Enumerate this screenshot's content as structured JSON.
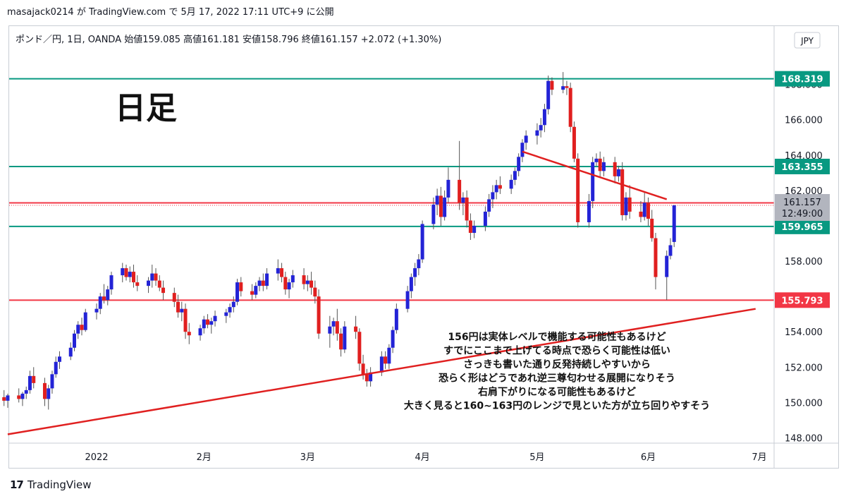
{
  "header": {
    "text": "masajack0214 が TradingView.com で 5月 17, 2022 17:11 UTC+9 に公開"
  },
  "footer": {
    "logo_glyph": "17",
    "brand": "TradingView"
  },
  "chart_data": {
    "type": "candlestick",
    "legend": "ポンド／円, 1日, OANDA  始値159.085  高値161.181  安値158.796  終値161.157  +2.072 (+1.30%)",
    "big_label": "日足",
    "currency": "JPY",
    "ylim": [
      147.7,
      171.3
    ],
    "y_ticks": [
      "148.000",
      "150.000",
      "152.000",
      "154.000",
      "156.000",
      "158.000",
      "160.000",
      "162.000",
      "164.000",
      "166.000",
      "168.000"
    ],
    "x_labels": [
      {
        "label": "2022",
        "date": "2022-01-03"
      },
      {
        "label": "2月",
        "date": "2022-02-01"
      },
      {
        "label": "3月",
        "date": "2022-03-01"
      },
      {
        "label": "4月",
        "date": "2022-04-01"
      },
      {
        "label": "5月",
        "date": "2022-05-02"
      },
      {
        "label": "6月",
        "date": "2022-06-01"
      },
      {
        "label": "7月",
        "date": "2022-07-01"
      }
    ],
    "horizontal_levels": [
      {
        "value": 168.319,
        "label": "168.319",
        "color": "#089981"
      },
      {
        "value": 163.355,
        "label": "163.355",
        "color": "#089981"
      },
      {
        "value": 161.295,
        "label": "161.295",
        "color": "#f23645"
      },
      {
        "value": 159.965,
        "label": "159.965",
        "color": "#089981"
      },
      {
        "value": 155.793,
        "label": "155.793",
        "color": "#f23645"
      }
    ],
    "price_marker": {
      "value": 161.157,
      "price": "161.157",
      "countdown": "12:49:00"
    },
    "trend_lines": [
      {
        "from": {
          "date": "2021-12-10",
          "price": 148.2
        },
        "to": {
          "date": "2022-06-30",
          "price": 155.3
        },
        "color": "#e02020"
      },
      {
        "from": {
          "date": "2022-04-28",
          "price": 164.2
        },
        "to": {
          "date": "2022-06-06",
          "price": 161.5
        },
        "color": "#e02020"
      }
    ],
    "up_color": "#2323d6",
    "down_color": "#e01f1f",
    "annotation_lines": [
      "156円は実体レベルで機能する可能性もあるけど",
      "すでにここまで上げてる時点で恐らく可能性は低い",
      "さっきも書いた通り反発持続しやすいから",
      "恐らく形はどうであれ逆三尊匂わせる展開になりそう",
      "右肩下がりになる可能性もあるけど",
      "大きく見ると160~163円のレンジで見といた方が立ち回りやすそう"
    ],
    "candles": [
      {
        "date": "2021-12-09",
        "o": 150.3,
        "h": 150.7,
        "l": 149.8,
        "c": 150.1
      },
      {
        "date": "2021-12-10",
        "o": 150.1,
        "h": 150.5,
        "l": 149.7,
        "c": 150.4
      },
      {
        "date": "2021-12-13",
        "o": 150.4,
        "h": 150.8,
        "l": 150.0,
        "c": 150.2
      },
      {
        "date": "2021-12-14",
        "o": 150.2,
        "h": 150.6,
        "l": 149.8,
        "c": 150.5
      },
      {
        "date": "2021-12-15",
        "o": 150.5,
        "h": 150.9,
        "l": 150.2,
        "c": 150.7
      },
      {
        "date": "2021-12-16",
        "o": 150.7,
        "h": 151.8,
        "l": 150.5,
        "c": 151.5
      },
      {
        "date": "2021-12-17",
        "o": 151.5,
        "h": 152.0,
        "l": 150.8,
        "c": 151.1
      },
      {
        "date": "2021-12-20",
        "o": 151.1,
        "h": 151.4,
        "l": 149.8,
        "c": 150.2
      },
      {
        "date": "2021-12-21",
        "o": 150.2,
        "h": 151.0,
        "l": 149.6,
        "c": 150.8
      },
      {
        "date": "2021-12-22",
        "o": 150.8,
        "h": 151.8,
        "l": 150.5,
        "c": 151.6
      },
      {
        "date": "2021-12-23",
        "o": 151.6,
        "h": 152.6,
        "l": 151.4,
        "c": 152.3
      },
      {
        "date": "2021-12-24",
        "o": 152.3,
        "h": 152.9,
        "l": 151.9,
        "c": 152.6
      },
      {
        "date": "2021-12-27",
        "o": 152.6,
        "h": 153.4,
        "l": 152.4,
        "c": 153.1
      },
      {
        "date": "2021-12-28",
        "o": 153.1,
        "h": 154.1,
        "l": 152.9,
        "c": 153.9
      },
      {
        "date": "2021-12-29",
        "o": 153.9,
        "h": 154.6,
        "l": 153.6,
        "c": 154.4
      },
      {
        "date": "2021-12-30",
        "o": 154.4,
        "h": 154.8,
        "l": 153.8,
        "c": 154.1
      },
      {
        "date": "2021-12-31",
        "o": 154.1,
        "h": 155.3,
        "l": 154.0,
        "c": 155.1
      },
      {
        "date": "2022-01-03",
        "o": 155.1,
        "h": 155.6,
        "l": 154.7,
        "c": 155.3
      },
      {
        "date": "2022-01-04",
        "o": 155.3,
        "h": 156.2,
        "l": 155.0,
        "c": 156.0
      },
      {
        "date": "2022-01-05",
        "o": 156.0,
        "h": 156.7,
        "l": 155.6,
        "c": 155.8
      },
      {
        "date": "2022-01-06",
        "o": 155.8,
        "h": 156.6,
        "l": 155.5,
        "c": 156.4
      },
      {
        "date": "2022-01-07",
        "o": 156.4,
        "h": 157.4,
        "l": 156.1,
        "c": 157.2
      },
      {
        "date": "2022-01-10",
        "o": 157.2,
        "h": 157.9,
        "l": 156.8,
        "c": 157.6
      },
      {
        "date": "2022-01-11",
        "o": 157.6,
        "h": 157.8,
        "l": 156.9,
        "c": 157.1
      },
      {
        "date": "2022-01-12",
        "o": 157.1,
        "h": 157.7,
        "l": 156.8,
        "c": 157.4
      },
      {
        "date": "2022-01-13",
        "o": 157.4,
        "h": 157.8,
        "l": 156.5,
        "c": 156.8
      },
      {
        "date": "2022-01-14",
        "o": 156.8,
        "h": 157.2,
        "l": 156.3,
        "c": 156.6
      },
      {
        "date": "2022-01-17",
        "o": 156.6,
        "h": 157.1,
        "l": 156.2,
        "c": 156.9
      },
      {
        "date": "2022-01-18",
        "o": 156.9,
        "h": 157.8,
        "l": 156.5,
        "c": 157.3
      },
      {
        "date": "2022-01-19",
        "o": 157.3,
        "h": 157.6,
        "l": 156.6,
        "c": 156.9
      },
      {
        "date": "2022-01-20",
        "o": 156.9,
        "h": 157.2,
        "l": 156.3,
        "c": 156.5
      },
      {
        "date": "2022-01-21",
        "o": 156.5,
        "h": 156.9,
        "l": 155.8,
        "c": 156.2
      },
      {
        "date": "2022-01-24",
        "o": 156.2,
        "h": 156.5,
        "l": 155.4,
        "c": 155.7
      },
      {
        "date": "2022-01-25",
        "o": 155.7,
        "h": 156.1,
        "l": 154.8,
        "c": 155.1
      },
      {
        "date": "2022-01-26",
        "o": 155.1,
        "h": 155.7,
        "l": 154.6,
        "c": 155.3
      },
      {
        "date": "2022-01-27",
        "o": 155.3,
        "h": 155.6,
        "l": 153.6,
        "c": 154.0
      },
      {
        "date": "2022-01-28",
        "o": 154.0,
        "h": 154.5,
        "l": 153.3,
        "c": 153.8
      },
      {
        "date": "2022-01-31",
        "o": 153.8,
        "h": 154.4,
        "l": 153.5,
        "c": 154.2
      },
      {
        "date": "2022-02-01",
        "o": 154.2,
        "h": 154.9,
        "l": 153.9,
        "c": 154.7
      },
      {
        "date": "2022-02-02",
        "o": 154.7,
        "h": 155.0,
        "l": 154.2,
        "c": 154.4
      },
      {
        "date": "2022-02-03",
        "o": 154.4,
        "h": 154.8,
        "l": 153.9,
        "c": 154.6
      },
      {
        "date": "2022-02-04",
        "o": 154.6,
        "h": 155.2,
        "l": 154.3,
        "c": 154.9
      },
      {
        "date": "2022-02-07",
        "o": 154.9,
        "h": 155.3,
        "l": 154.5,
        "c": 155.1
      },
      {
        "date": "2022-02-08",
        "o": 155.1,
        "h": 155.6,
        "l": 154.8,
        "c": 155.4
      },
      {
        "date": "2022-02-09",
        "o": 155.4,
        "h": 156.0,
        "l": 155.1,
        "c": 155.7
      },
      {
        "date": "2022-02-10",
        "o": 155.7,
        "h": 157.0,
        "l": 155.5,
        "c": 156.8
      },
      {
        "date": "2022-02-11",
        "o": 156.8,
        "h": 157.1,
        "l": 156.0,
        "c": 156.3
      },
      {
        "date": "2022-02-14",
        "o": 156.3,
        "h": 156.7,
        "l": 155.8,
        "c": 156.1
      },
      {
        "date": "2022-02-15",
        "o": 156.1,
        "h": 156.8,
        "l": 155.9,
        "c": 156.6
      },
      {
        "date": "2022-02-16",
        "o": 156.6,
        "h": 157.1,
        "l": 156.3,
        "c": 156.9
      },
      {
        "date": "2022-02-17",
        "o": 156.9,
        "h": 157.3,
        "l": 156.3,
        "c": 156.6
      },
      {
        "date": "2022-02-18",
        "o": 156.6,
        "h": 157.6,
        "l": 156.4,
        "c": 157.3
      },
      {
        "date": "2022-02-21",
        "o": 157.3,
        "h": 158.1,
        "l": 156.9,
        "c": 157.6
      },
      {
        "date": "2022-02-22",
        "o": 157.6,
        "h": 157.9,
        "l": 156.8,
        "c": 157.1
      },
      {
        "date": "2022-02-23",
        "o": 157.1,
        "h": 157.4,
        "l": 156.1,
        "c": 156.4
      },
      {
        "date": "2022-02-24",
        "o": 156.4,
        "h": 157.0,
        "l": 155.9,
        "c": 156.8
      },
      {
        "date": "2022-02-25",
        "o": 156.8,
        "h": 157.5,
        "l": 156.5,
        "c": 157.2
      },
      {
        "date": "2022-02-28",
        "o": 157.2,
        "h": 157.6,
        "l": 156.4,
        "c": 156.7
      },
      {
        "date": "2022-03-01",
        "o": 156.7,
        "h": 157.2,
        "l": 156.3,
        "c": 156.9
      },
      {
        "date": "2022-03-02",
        "o": 156.9,
        "h": 157.4,
        "l": 156.1,
        "c": 156.5
      },
      {
        "date": "2022-03-03",
        "o": 156.5,
        "h": 156.9,
        "l": 155.6,
        "c": 156.0
      },
      {
        "date": "2022-03-04",
        "o": 156.0,
        "h": 156.4,
        "l": 153.6,
        "c": 153.9
      },
      {
        "date": "2022-03-07",
        "o": 153.9,
        "h": 154.9,
        "l": 153.1,
        "c": 154.3
      },
      {
        "date": "2022-03-08",
        "o": 154.3,
        "h": 154.8,
        "l": 153.8,
        "c": 154.6
      },
      {
        "date": "2022-03-09",
        "o": 154.6,
        "h": 155.3,
        "l": 153.5,
        "c": 153.9
      },
      {
        "date": "2022-03-10",
        "o": 153.9,
        "h": 154.2,
        "l": 152.6,
        "c": 153.0
      },
      {
        "date": "2022-03-11",
        "o": 153.0,
        "h": 154.6,
        "l": 152.8,
        "c": 154.3
      },
      {
        "date": "2022-03-14",
        "o": 154.3,
        "h": 154.9,
        "l": 153.6,
        "c": 154.0
      },
      {
        "date": "2022-03-15",
        "o": 154.0,
        "h": 154.2,
        "l": 151.8,
        "c": 152.2
      },
      {
        "date": "2022-03-16",
        "o": 152.2,
        "h": 152.7,
        "l": 151.3,
        "c": 151.6
      },
      {
        "date": "2022-03-17",
        "o": 151.6,
        "h": 151.9,
        "l": 150.9,
        "c": 151.2
      },
      {
        "date": "2022-03-18",
        "o": 151.2,
        "h": 152.0,
        "l": 150.9,
        "c": 151.7
      },
      {
        "date": "2022-03-21",
        "o": 151.7,
        "h": 152.9,
        "l": 151.5,
        "c": 152.6
      },
      {
        "date": "2022-03-22",
        "o": 152.6,
        "h": 152.9,
        "l": 151.9,
        "c": 152.2
      },
      {
        "date": "2022-03-23",
        "o": 152.2,
        "h": 153.3,
        "l": 151.9,
        "c": 153.1
      },
      {
        "date": "2022-03-24",
        "o": 153.1,
        "h": 154.3,
        "l": 152.8,
        "c": 154.1
      },
      {
        "date": "2022-03-25",
        "o": 154.1,
        "h": 155.6,
        "l": 153.9,
        "c": 155.3
      },
      {
        "date": "2022-03-28",
        "o": 155.3,
        "h": 156.6,
        "l": 155.1,
        "c": 156.3
      },
      {
        "date": "2022-03-29",
        "o": 156.3,
        "h": 157.3,
        "l": 155.9,
        "c": 157.1
      },
      {
        "date": "2022-03-30",
        "o": 157.1,
        "h": 157.9,
        "l": 156.6,
        "c": 157.6
      },
      {
        "date": "2022-03-31",
        "o": 157.6,
        "h": 158.4,
        "l": 157.2,
        "c": 158.1
      },
      {
        "date": "2022-04-01",
        "o": 158.1,
        "h": 160.3,
        "l": 157.9,
        "c": 160.1
      },
      {
        "date": "2022-04-04",
        "o": 160.1,
        "h": 161.6,
        "l": 159.8,
        "c": 161.2
      },
      {
        "date": "2022-04-05",
        "o": 161.2,
        "h": 162.1,
        "l": 160.6,
        "c": 161.7
      },
      {
        "date": "2022-04-06",
        "o": 161.7,
        "h": 162.2,
        "l": 160.0,
        "c": 160.5
      },
      {
        "date": "2022-04-07",
        "o": 160.5,
        "h": 162.0,
        "l": 160.3,
        "c": 161.6
      },
      {
        "date": "2022-04-08",
        "o": 161.6,
        "h": 163.3,
        "l": 161.3,
        "c": 162.6
      },
      {
        "date": "2022-04-11",
        "o": 162.6,
        "h": 164.8,
        "l": 160.9,
        "c": 161.3
      },
      {
        "date": "2022-04-12",
        "o": 161.3,
        "h": 161.9,
        "l": 160.6,
        "c": 161.6
      },
      {
        "date": "2022-04-13",
        "o": 161.6,
        "h": 162.0,
        "l": 159.9,
        "c": 160.3
      },
      {
        "date": "2022-04-14",
        "o": 160.3,
        "h": 160.7,
        "l": 159.2,
        "c": 159.6
      },
      {
        "date": "2022-04-15",
        "o": 159.6,
        "h": 160.3,
        "l": 159.3,
        "c": 160.0
      },
      {
        "date": "2022-04-18",
        "o": 160.0,
        "h": 161.1,
        "l": 159.7,
        "c": 160.8
      },
      {
        "date": "2022-04-19",
        "o": 160.8,
        "h": 161.8,
        "l": 160.5,
        "c": 161.5
      },
      {
        "date": "2022-04-20",
        "o": 161.5,
        "h": 162.3,
        "l": 161.0,
        "c": 161.9
      },
      {
        "date": "2022-04-21",
        "o": 161.9,
        "h": 162.6,
        "l": 161.5,
        "c": 162.3
      },
      {
        "date": "2022-04-22",
        "o": 162.3,
        "h": 162.8,
        "l": 161.8,
        "c": 162.1
      },
      {
        "date": "2022-04-25",
        "o": 162.1,
        "h": 162.9,
        "l": 161.8,
        "c": 162.6
      },
      {
        "date": "2022-04-26",
        "o": 162.6,
        "h": 163.3,
        "l": 162.3,
        "c": 163.1
      },
      {
        "date": "2022-04-27",
        "o": 163.1,
        "h": 164.1,
        "l": 162.8,
        "c": 163.9
      },
      {
        "date": "2022-04-28",
        "o": 163.9,
        "h": 164.9,
        "l": 163.6,
        "c": 164.7
      },
      {
        "date": "2022-04-29",
        "o": 164.7,
        "h": 165.4,
        "l": 164.3,
        "c": 165.1
      },
      {
        "date": "2022-05-02",
        "o": 165.1,
        "h": 165.8,
        "l": 164.6,
        "c": 165.4
      },
      {
        "date": "2022-05-03",
        "o": 165.4,
        "h": 166.1,
        "l": 165.0,
        "c": 165.7
      },
      {
        "date": "2022-05-04",
        "o": 165.7,
        "h": 166.9,
        "l": 165.3,
        "c": 166.6
      },
      {
        "date": "2022-05-05",
        "o": 166.6,
        "h": 168.5,
        "l": 166.3,
        "c": 168.2
      },
      {
        "date": "2022-05-06",
        "o": 168.2,
        "h": 168.4,
        "l": 167.4,
        "c": 167.7
      },
      {
        "date": "2022-05-09",
        "o": 167.7,
        "h": 168.7,
        "l": 167.5,
        "c": 167.9
      },
      {
        "date": "2022-05-10",
        "o": 167.9,
        "h": 168.2,
        "l": 167.4,
        "c": 167.8
      },
      {
        "date": "2022-05-11",
        "o": 167.8,
        "h": 168.1,
        "l": 165.3,
        "c": 165.6
      },
      {
        "date": "2022-05-12",
        "o": 165.6,
        "h": 165.9,
        "l": 163.6,
        "c": 163.8
      },
      {
        "date": "2022-05-13",
        "o": 163.8,
        "h": 164.1,
        "l": 159.9,
        "c": 160.2
      },
      {
        "date": "2022-05-16",
        "o": 160.2,
        "h": 161.8,
        "l": 159.9,
        "c": 161.4
      },
      {
        "date": "2022-05-17",
        "o": 161.4,
        "h": 163.9,
        "l": 161.0,
        "c": 163.6
      },
      {
        "date": "2022-05-18",
        "o": 163.6,
        "h": 164.1,
        "l": 163.4,
        "c": 163.8
      },
      {
        "date": "2022-05-19",
        "o": 163.8,
        "h": 164.2,
        "l": 162.7,
        "c": 163.1
      },
      {
        "date": "2022-05-20",
        "o": 163.1,
        "h": 163.9,
        "l": 162.8,
        "c": 163.6
      },
      {
        "date": "2022-05-23",
        "o": 163.6,
        "h": 163.9,
        "l": 162.4,
        "c": 162.8
      },
      {
        "date": "2022-05-24",
        "o": 162.8,
        "h": 163.4,
        "l": 162.5,
        "c": 163.2
      },
      {
        "date": "2022-05-25",
        "o": 163.2,
        "h": 163.6,
        "l": 160.3,
        "c": 160.6
      },
      {
        "date": "2022-05-26",
        "o": 160.6,
        "h": 161.9,
        "l": 160.3,
        "c": 161.6
      },
      {
        "date": "2022-05-27",
        "o": 161.6,
        "h": 162.3,
        "l": 160.4,
        "c": 160.8
      },
      {
        "date": "2022-05-30",
        "o": 160.8,
        "h": 161.4,
        "l": 160.2,
        "c": 160.5
      },
      {
        "date": "2022-05-31",
        "o": 160.5,
        "h": 161.9,
        "l": 160.3,
        "c": 161.3
      },
      {
        "date": "2022-06-01",
        "o": 161.3,
        "h": 161.6,
        "l": 160.0,
        "c": 160.4
      },
      {
        "date": "2022-06-02",
        "o": 160.4,
        "h": 160.9,
        "l": 159.1,
        "c": 159.3
      },
      {
        "date": "2022-06-03",
        "o": 159.3,
        "h": 159.6,
        "l": 156.4,
        "c": 157.1
      },
      {
        "date": "2022-06-06",
        "o": 157.1,
        "h": 158.6,
        "l": 155.8,
        "c": 158.3
      },
      {
        "date": "2022-06-07",
        "o": 158.3,
        "h": 159.3,
        "l": 158.1,
        "c": 158.9
      },
      {
        "date": "2022-06-08",
        "o": 159.085,
        "h": 161.181,
        "l": 158.796,
        "c": 161.157
      }
    ]
  }
}
